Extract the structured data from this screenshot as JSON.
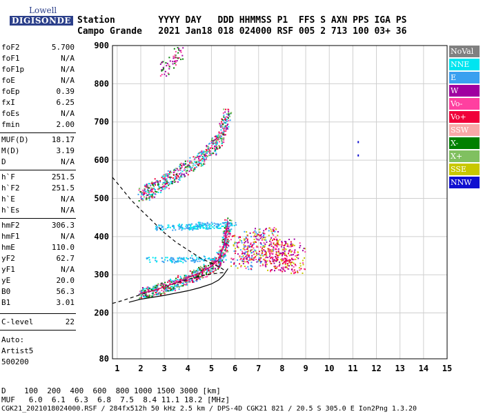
{
  "logo": {
    "top": "Lowell",
    "bottom": "DIGISONDE"
  },
  "header": {
    "row1": "Station        YYYY DAY   DDD HHMMSS P1  FFS S AXN PPS IGA PS",
    "row2": "Campo Grande   2021 Jan18 018 024000 RSF 005 2 713 100 03+ 36"
  },
  "params": [
    {
      "name": "foF2",
      "value": "5.700"
    },
    {
      "name": "foF1",
      "value": "N/A"
    },
    {
      "name": "foF1p",
      "value": "N/A"
    },
    {
      "name": "foE",
      "value": "N/A"
    },
    {
      "name": "foEp",
      "value": "0.39"
    },
    {
      "name": "fxI",
      "value": "6.25"
    },
    {
      "name": "foEs",
      "value": "N/A"
    },
    {
      "name": "fmin",
      "value": "2.00"
    },
    {
      "name": "MUF(D)",
      "value": "18.17"
    },
    {
      "name": "M(D)",
      "value": "3.19"
    },
    {
      "name": "D",
      "value": "N/A"
    },
    {
      "name": "h`F",
      "value": "251.5"
    },
    {
      "name": "h`F2",
      "value": "251.5"
    },
    {
      "name": "h`E",
      "value": "N/A"
    },
    {
      "name": "h`Es",
      "value": "N/A"
    },
    {
      "name": "hmF2",
      "value": "306.3"
    },
    {
      "name": "hmF1",
      "value": "N/A"
    },
    {
      "name": "hmE",
      "value": "110.0"
    },
    {
      "name": "yF2",
      "value": "62.7"
    },
    {
      "name": "yF1",
      "value": "N/A"
    },
    {
      "name": "yE",
      "value": "20.0"
    },
    {
      "name": "B0",
      "value": "56.3"
    },
    {
      "name": "B1",
      "value": "3.01"
    },
    {
      "name": "C-level",
      "value": "22"
    }
  ],
  "auto": {
    "line1": "Auto:",
    "line2": "Artist5",
    "line3": "500200"
  },
  "legend": [
    {
      "label": "NoVal",
      "color": "#808080"
    },
    {
      "label": "NNE",
      "color": "#00e5f0"
    },
    {
      "label": "E",
      "color": "#3aa0f0"
    },
    {
      "label": "W",
      "color": "#a000a0"
    },
    {
      "label": "Vo-",
      "color": "#ff3fa0"
    },
    {
      "label": "Vo+",
      "color": "#f0003a"
    },
    {
      "label": "SSW",
      "color": "#f8a8a8"
    },
    {
      "label": "X-",
      "color": "#008000"
    },
    {
      "label": "X+",
      "color": "#80c060"
    },
    {
      "label": "SSE",
      "color": "#c8c800"
    },
    {
      "label": "NNW",
      "color": "#1010d0"
    }
  ],
  "footer": {
    "line1": "D    100  200  400  600  800 1000 1500 3000 [km]",
    "line2": "MUF   6.0  6.1  6.3  6.8  7.5  8.4 11.1 18.2 [MHz]",
    "line3": "CGK21_2021018024000.RSF / 284fx512h 50 kHz 2.5 km / DPS-4D CGK21 821 / 20.5 S 305.0 E Ion2Png 1.3.20"
  },
  "chart_data": {
    "type": "scatter",
    "xlim": [
      0.8,
      15
    ],
    "ylim": [
      80,
      900
    ],
    "x_ticks": [
      1,
      2,
      3,
      4,
      5,
      6,
      7,
      8,
      9,
      10,
      11,
      12,
      13,
      14,
      15
    ],
    "y_ticks": [
      80,
      200,
      300,
      400,
      500,
      600,
      700,
      800,
      900
    ],
    "grid": true,
    "series": [
      {
        "name": "virtual-height-trace",
        "x": [
          2.0,
          2.5,
          3.0,
          3.5,
          4.0,
          4.5,
          5.0,
          5.3,
          5.5,
          5.6,
          5.7
        ],
        "y": [
          252,
          258,
          268,
          280,
          292,
          305,
          322,
          340,
          370,
          400,
          440
        ]
      },
      {
        "name": "profile-solid",
        "x": [
          1.5,
          2.0,
          3.0,
          4.0,
          4.5,
          5.0,
          5.3,
          5.5,
          5.7
        ],
        "y": [
          228,
          236,
          246,
          258,
          266,
          276,
          286,
          298,
          316
        ]
      },
      {
        "name": "profile-dashed",
        "x": [
          0.8,
          1.2,
          1.6,
          2.0,
          2.5,
          3.0,
          3.5,
          4.0,
          4.5,
          5.0,
          5.4,
          5.6
        ],
        "y": [
          225,
          232,
          240,
          248,
          258,
          268,
          278,
          288,
          296,
          302,
          305,
          306
        ]
      },
      {
        "name": "profile-dashed-upper",
        "x": [
          0.8,
          1.2,
          1.6,
          2.0,
          2.5,
          3.0,
          3.5,
          4.0,
          4.5,
          5.0,
          5.4,
          5.6
        ],
        "y": [
          555,
          525,
          495,
          470,
          440,
          410,
          385,
          365,
          345,
          330,
          318,
          310
        ]
      },
      {
        "name": "second-hop",
        "x": [
          2.0,
          2.5,
          3.0,
          3.5,
          4.0,
          4.5,
          5.0,
          5.3,
          5.5,
          5.7
        ],
        "y": [
          512,
          525,
          545,
          565,
          585,
          605,
          630,
          655,
          690,
          730
        ]
      }
    ]
  }
}
